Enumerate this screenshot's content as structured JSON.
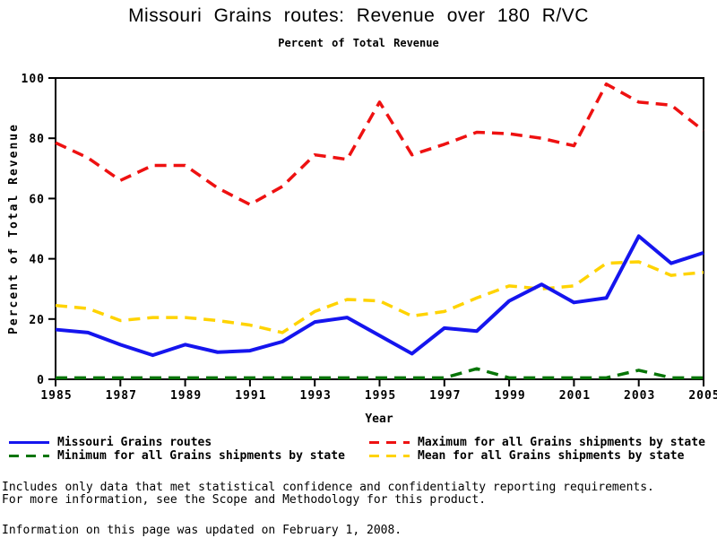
{
  "chart_data": {
    "type": "line",
    "title": "Missouri Grains routes: Revenue over 180 R/VC",
    "subtitle": "Percent of Total Revenue",
    "xlabel": "Year",
    "ylabel": "Percent of Total Revenue",
    "xlim": [
      1985,
      2005
    ],
    "ylim": [
      0,
      100
    ],
    "x_ticks": [
      1985,
      1987,
      1989,
      1991,
      1993,
      1995,
      1997,
      1999,
      2001,
      2003,
      2005
    ],
    "y_ticks": [
      0,
      20,
      40,
      60,
      80,
      100
    ],
    "grid": false,
    "legend_position": "bottom-two-columns",
    "x": [
      1985,
      1986,
      1987,
      1988,
      1989,
      1990,
      1991,
      1992,
      1993,
      1994,
      1995,
      1996,
      1997,
      1998,
      1999,
      2000,
      2001,
      2002,
      2003,
      2004,
      2005
    ],
    "series": [
      {
        "name": "Missouri Grains routes",
        "color": "#1515ee",
        "style": "solid",
        "width": 4,
        "values": [
          16.5,
          15.5,
          11.5,
          8,
          11.5,
          9,
          9.5,
          12.5,
          19,
          20.5,
          14.5,
          8.5,
          17,
          16,
          26,
          31.5,
          25.5,
          27,
          47.5,
          38.5,
          42
        ]
      },
      {
        "name": "Maximum for all Grains shipments by state",
        "color": "#ee1111",
        "style": "dashed",
        "width": 3.5,
        "values": [
          78.5,
          73.5,
          66,
          71,
          71,
          63.5,
          58,
          64,
          74.5,
          73,
          92,
          74.5,
          78,
          82,
          81.5,
          80,
          77.5,
          98,
          92,
          91,
          82.5
        ]
      },
      {
        "name": "Minimum for all Grains shipments by state",
        "color": "#077507",
        "style": "dashed",
        "width": 3.5,
        "values": [
          0.5,
          0.5,
          0.5,
          0.5,
          0.5,
          0.5,
          0.5,
          0.5,
          0.5,
          0.5,
          0.5,
          0.5,
          0.5,
          3.5,
          0.5,
          0.5,
          0.5,
          0.5,
          3,
          0.5,
          0.5
        ]
      },
      {
        "name": "Mean for all Grains shipments by state",
        "color": "#ffd300",
        "style": "dashed",
        "width": 3.5,
        "values": [
          24.5,
          23.5,
          19.5,
          20.5,
          20.5,
          19.5,
          18,
          15.5,
          22.5,
          26.5,
          26,
          21,
          22.5,
          27,
          31,
          30,
          31,
          38.5,
          39,
          34.5,
          35.5
        ]
      }
    ]
  },
  "footer": {
    "note_line1": "Includes only data that met statistical confidence and confidentialty reporting requirements.",
    "note_line2": "For more information, see the Scope and Methodology for this product.",
    "updated": "Information on this page was updated on February 1, 2008."
  }
}
